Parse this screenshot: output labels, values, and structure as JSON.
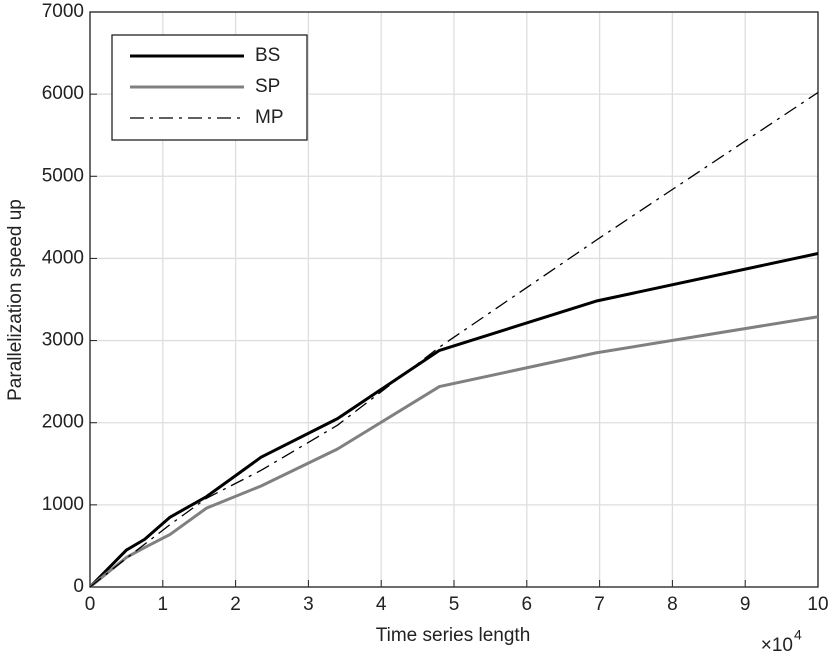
{
  "chart_data": {
    "type": "line",
    "x_label": "Time series length",
    "y_label": "Parallelization speed up",
    "x_scale_label": "×10",
    "x_scale_exponent": "4",
    "x": [
      0,
      0.5,
      0.75,
      1.1,
      1.6,
      2.35,
      3.4,
      4.8,
      6.95,
      10
    ],
    "series": [
      {
        "name": "BS",
        "color": "#000000",
        "style": "solid",
        "width": 3,
        "values": [
          0,
          450,
          580,
          850,
          1100,
          1580,
          2050,
          2880,
          3480,
          4060
        ]
      },
      {
        "name": "SP",
        "color": "#808080",
        "style": "solid",
        "width": 3,
        "values": [
          0,
          360,
          480,
          640,
          960,
          1230,
          1680,
          2440,
          2850,
          3290
        ]
      },
      {
        "name": "MP",
        "color": "#000000",
        "style": "dashdot",
        "width": 1.3,
        "values": [
          0,
          350,
          520,
          760,
          1080,
          1420,
          1970,
          2920,
          4220,
          6020
        ]
      }
    ],
    "xlim": [
      0,
      10
    ],
    "xticks": [
      0,
      1,
      2,
      3,
      4,
      5,
      6,
      7,
      8,
      9,
      10
    ],
    "ylim": [
      0,
      7000
    ],
    "yticks": [
      0,
      1000,
      2000,
      3000,
      4000,
      5000,
      6000,
      7000
    ],
    "grid": true,
    "legend": "upper-left"
  }
}
